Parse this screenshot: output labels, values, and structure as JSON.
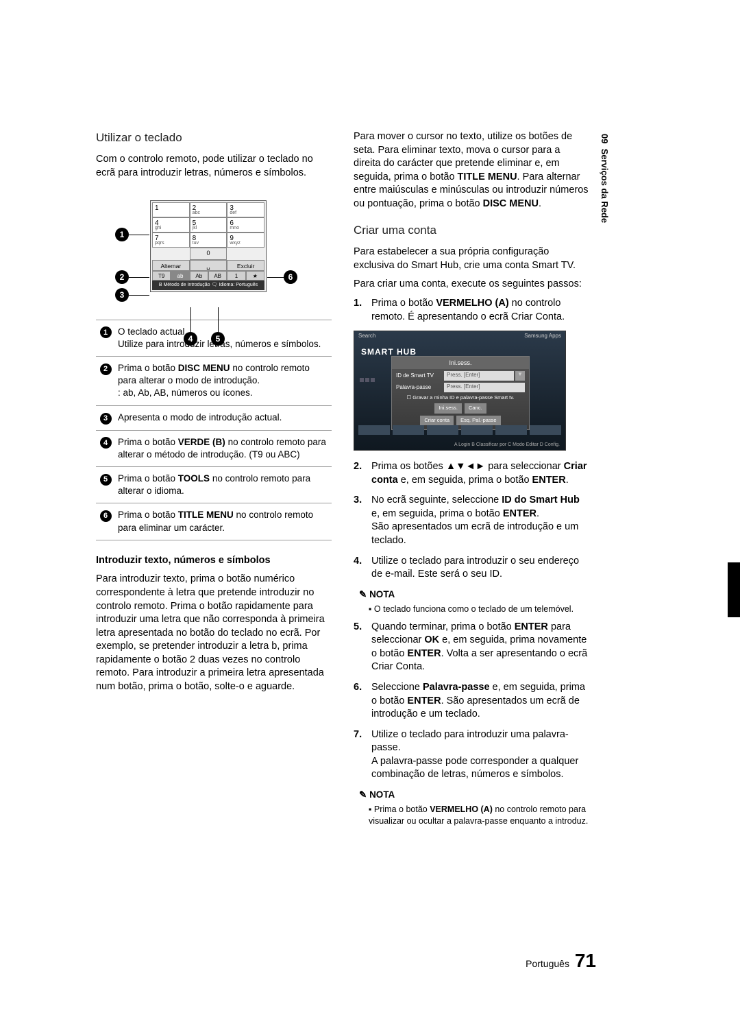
{
  "sidebar": {
    "chapter": "09",
    "title": "Serviços da Rede"
  },
  "left": {
    "h_keyboard": "Utilizar o teclado",
    "intro": "Com o controlo remoto, pode utilizar o teclado no ecrã para introduzir letras, números e símbolos.",
    "keypad": {
      "rows": [
        [
          {
            "n": "1",
            "s": ""
          },
          {
            "n": "2",
            "s": "abc"
          },
          {
            "n": "3",
            "s": "def"
          }
        ],
        [
          {
            "n": "4",
            "s": "ghi"
          },
          {
            "n": "5",
            "s": "jkl"
          },
          {
            "n": "6",
            "s": "mno"
          }
        ],
        [
          {
            "n": "7",
            "s": "pqrs"
          },
          {
            "n": "8",
            "s": "tuv"
          },
          {
            "n": "9",
            "s": "wxyz"
          }
        ]
      ],
      "zero": "0",
      "ctrl_left": "Alternar",
      "ctrl_mid": "␣",
      "ctrl_right": "Excluir",
      "mode": [
        "T9",
        "ab",
        "Ab",
        "AB",
        "1",
        "★"
      ],
      "bottom": "B Método de Introdução  🗨 Idioma: Português"
    },
    "desc": [
      "O teclado actual.\nUtilize para introduzir letras, números e símbolos.",
      "Prima o botão DISC MENU no controlo remoto para alterar o modo de introdução.\n: ab, Ab, AB, números ou ícones.",
      "Apresenta o modo de introdução actual.",
      "Prima o botão VERDE (B) no controlo remoto para alterar o método de introdução. (T9 ou ABC)",
      "Prima o botão TOOLS no controlo remoto para alterar o idioma.",
      "Prima o botão TITLE MENU no controlo remoto para eliminar um carácter."
    ],
    "h_input": "Introduzir texto, números e símbolos",
    "input_para": "Para introduzir texto, prima o botão numérico correspondente à letra que pretende introduzir no controlo remoto. Prima o botão rapidamente para introduzir uma letra que não corresponda à primeira letra apresentada no botão do teclado no ecrã. Por exemplo, se pretender introduzir a letra b, prima rapidamente o botão 2 duas vezes no controlo remoto. Para introduzir a primeira letra apresentada num botão, prima o botão, solte-o e aguarde."
  },
  "right": {
    "cursor_para1": "Para mover o cursor no texto, utilize os botões de seta. Para eliminar texto, mova o cursor para a direita do carácter que pretende eliminar e, em seguida, prima o botão ",
    "cursor_para1_bold": "TITLE MENU",
    "cursor_para1_end": ". Para alternar entre maiúsculas e minúsculas ou introduzir números ou pontuação, prima o botão ",
    "cursor_para1_bold2": "DISC MENU",
    "h_account": "Criar uma conta",
    "acc_intro1": "Para estabelecer a sua própria configuração exclusiva do Smart Hub, crie uma conta Smart TV.",
    "acc_intro2": "Para criar uma conta, execute os seguintes passos:",
    "steps": [
      {
        "n": "1.",
        "t": "Prima o botão VERMELHO (A) no controlo remoto. É apresentando o ecrã Criar Conta."
      },
      {
        "n": "2.",
        "t": "Prima os botões ▲▼◄► para seleccionar Criar conta e, em seguida, prima o botão ENTER."
      },
      {
        "n": "3.",
        "t": "No ecrã seguinte, seleccione ID do Smart Hub e, em seguida, prima o botão ENTER.\nSão apresentados um ecrã de introdução e um teclado."
      },
      {
        "n": "4.",
        "t": "Utilize o teclado para introduzir o seu endereço de e-mail. Este será o seu ID."
      }
    ],
    "note1_hdr": "NOTA",
    "note1": "O teclado funciona como o teclado de um telemóvel.",
    "steps2": [
      {
        "n": "5.",
        "t": "Quando terminar, prima o botão ENTER para seleccionar OK e, em seguida, prima novamente o botão ENTER. Volta a ser apresentando o ecrã Criar Conta."
      },
      {
        "n": "6.",
        "t": "Seleccione Palavra-passe e, em seguida, prima o botão ENTER. São apresentados um ecrã de introdução e um teclado."
      },
      {
        "n": "7.",
        "t": "Utilize o teclado para introduzir uma palavra-passe.\nA palavra-passe pode corresponder a qualquer combinação de letras, números e símbolos."
      }
    ],
    "note2_hdr": "NOTA",
    "note2": "Prima o botão VERMELHO (A) no controlo remoto para visualizar ou ocultar a palavra-passe enquanto a introduz.",
    "hub": {
      "logo": "SMART HUB",
      "search_ph": "Search",
      "modal_title": "Ini.sess.",
      "row1_lbl": "ID de Smart TV",
      "row1_fld": "Press. [Enter]",
      "row2_lbl": "Palavra-passe",
      "row2_fld": "Press. [Enter]",
      "chk": "☐  Gravar a minha ID e palavra-passe Smart tv.",
      "b1": "Ini.sess.",
      "b2": "Canc.",
      "b3": "Criar conta",
      "b4": "Esq. Pal.-passe",
      "bottombar": "A Login  B Classificar por  C Modo Editar  D Config."
    }
  },
  "footer": {
    "lang": "Português",
    "page": "71"
  }
}
